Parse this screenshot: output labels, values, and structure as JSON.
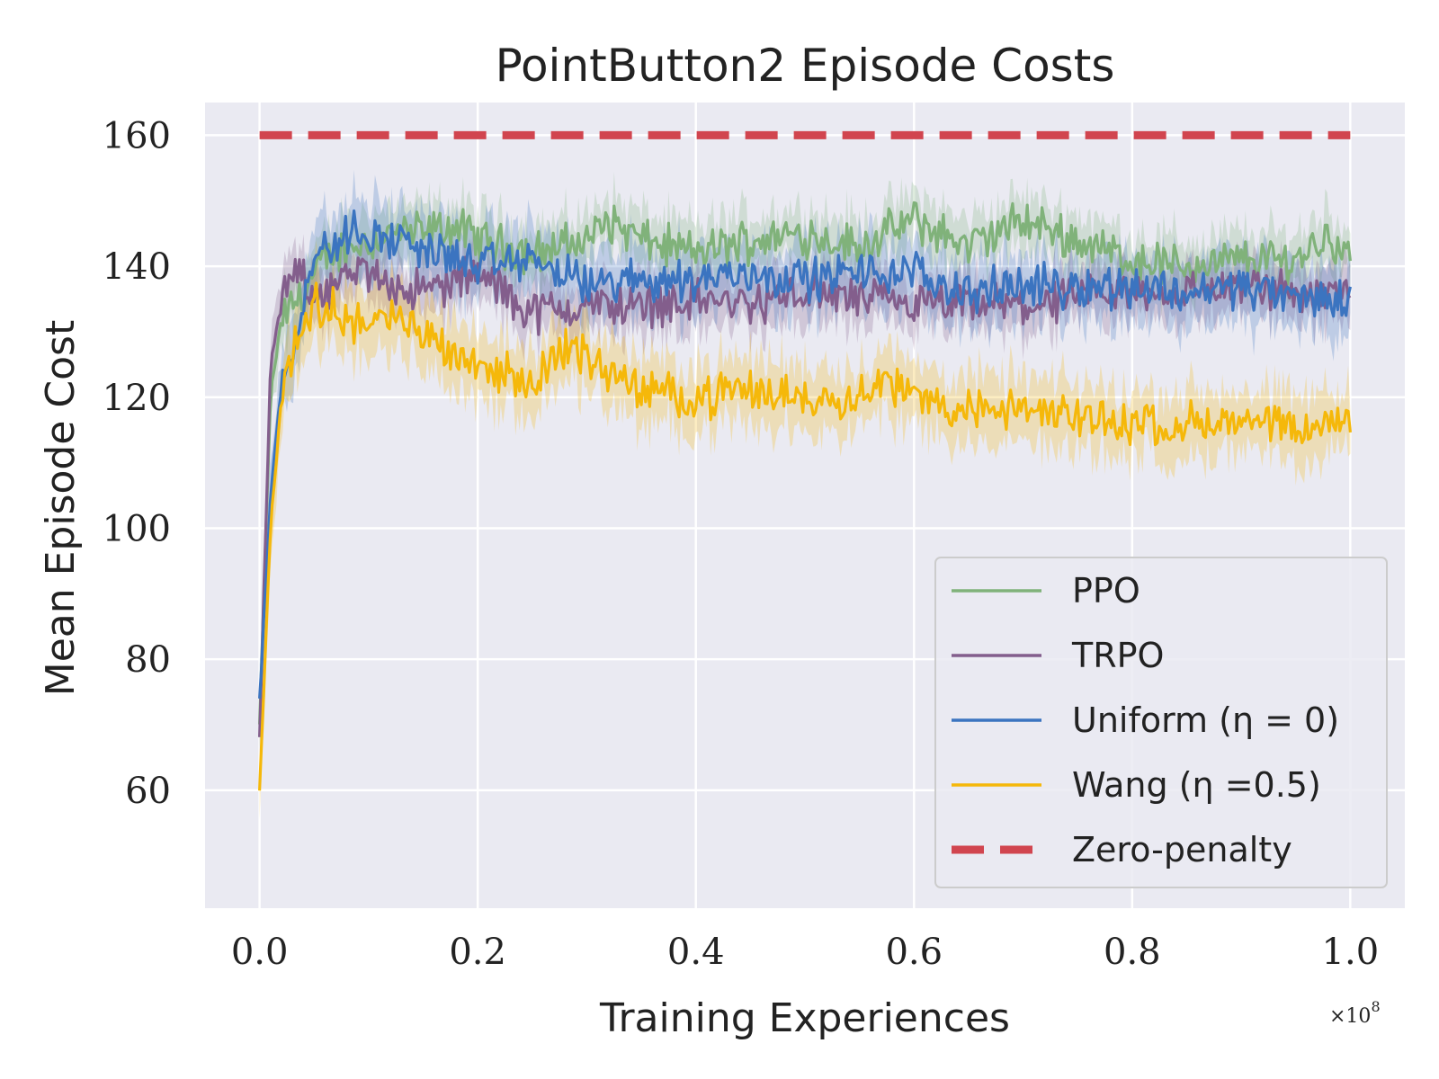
{
  "chart_data": {
    "type": "line",
    "title": "PointButton2 Episode Costs",
    "xlabel": "Training Experiences",
    "ylabel": "Mean Episode Cost",
    "x_multiplier_base": "×10",
    "x_multiplier_exp": "8",
    "xlim": [
      -0.05,
      1.05
    ],
    "ylim": [
      42,
      165
    ],
    "x_ticks": [
      0.0,
      0.2,
      0.4,
      0.6,
      0.8,
      1.0
    ],
    "x_tick_labels": [
      "0.0",
      "0.2",
      "0.4",
      "0.6",
      "0.8",
      "1.0"
    ],
    "y_ticks": [
      60,
      80,
      100,
      120,
      140,
      160
    ],
    "y_tick_labels": [
      "60",
      "80",
      "100",
      "120",
      "140",
      "160"
    ],
    "grid": true,
    "legend_position": "lower-right",
    "series": [
      {
        "name": "PPO",
        "color": "#80b27a",
        "style": "solid",
        "band": 4,
        "x": [
          0.0,
          0.01,
          0.02,
          0.04,
          0.06,
          0.08,
          0.1,
          0.12,
          0.15,
          0.18,
          0.2,
          0.25,
          0.3,
          0.32,
          0.35,
          0.4,
          0.45,
          0.5,
          0.55,
          0.6,
          0.65,
          0.7,
          0.75,
          0.8,
          0.85,
          0.9,
          0.95,
          0.98,
          1.0
        ],
        "y": [
          70,
          120,
          132,
          136,
          141,
          143,
          144,
          145,
          145,
          146,
          144,
          142,
          144,
          147,
          144,
          142,
          144,
          145,
          143,
          147,
          143,
          147,
          144,
          141,
          140,
          141,
          141,
          145,
          141
        ]
      },
      {
        "name": "TRPO",
        "color": "#835e8c",
        "style": "solid",
        "band": 4,
        "x": [
          0.0,
          0.01,
          0.02,
          0.03,
          0.05,
          0.08,
          0.1,
          0.13,
          0.15,
          0.2,
          0.25,
          0.3,
          0.35,
          0.4,
          0.45,
          0.5,
          0.55,
          0.6,
          0.65,
          0.7,
          0.75,
          0.8,
          0.85,
          0.9,
          0.95,
          1.0
        ],
        "y": [
          68,
          125,
          134,
          139,
          136,
          138,
          139,
          137,
          136,
          139,
          133,
          134,
          134,
          135,
          134,
          136,
          135,
          134,
          134,
          134,
          135,
          136,
          136,
          137,
          136,
          136
        ]
      },
      {
        "name": "Uniform (η = 0)",
        "color": "#3b74c0",
        "style": "solid",
        "band": 5,
        "x": [
          0.0,
          0.01,
          0.02,
          0.035,
          0.05,
          0.07,
          0.09,
          0.1,
          0.12,
          0.15,
          0.2,
          0.25,
          0.3,
          0.35,
          0.4,
          0.45,
          0.5,
          0.55,
          0.6,
          0.65,
          0.7,
          0.75,
          0.8,
          0.85,
          0.9,
          0.95,
          1.0
        ],
        "y": [
          74,
          105,
          122,
          131,
          142,
          143,
          146,
          145,
          144,
          143,
          140,
          141,
          137,
          138,
          138,
          139,
          138,
          139,
          139,
          136,
          137,
          137,
          137,
          136,
          137,
          135,
          135
        ]
      },
      {
        "name": "Wang (η =0.5)",
        "color": "#f5b80a",
        "style": "solid",
        "band": 5,
        "x": [
          0.0,
          0.01,
          0.02,
          0.035,
          0.05,
          0.07,
          0.1,
          0.12,
          0.15,
          0.2,
          0.25,
          0.28,
          0.32,
          0.35,
          0.4,
          0.45,
          0.5,
          0.55,
          0.57,
          0.6,
          0.65,
          0.7,
          0.75,
          0.8,
          0.85,
          0.9,
          0.95,
          1.0
        ],
        "y": [
          60,
          100,
          120,
          130,
          134,
          133,
          131,
          132,
          130,
          125,
          122,
          128,
          124,
          121,
          120,
          121,
          120,
          120,
          123,
          120,
          118,
          118,
          117,
          116,
          116,
          116,
          115,
          116
        ]
      },
      {
        "name": "Zero-penalty",
        "color": "#d1454f",
        "style": "dashed",
        "band": 0,
        "x": [
          0.0,
          1.0
        ],
        "y": [
          160,
          160
        ]
      }
    ]
  }
}
